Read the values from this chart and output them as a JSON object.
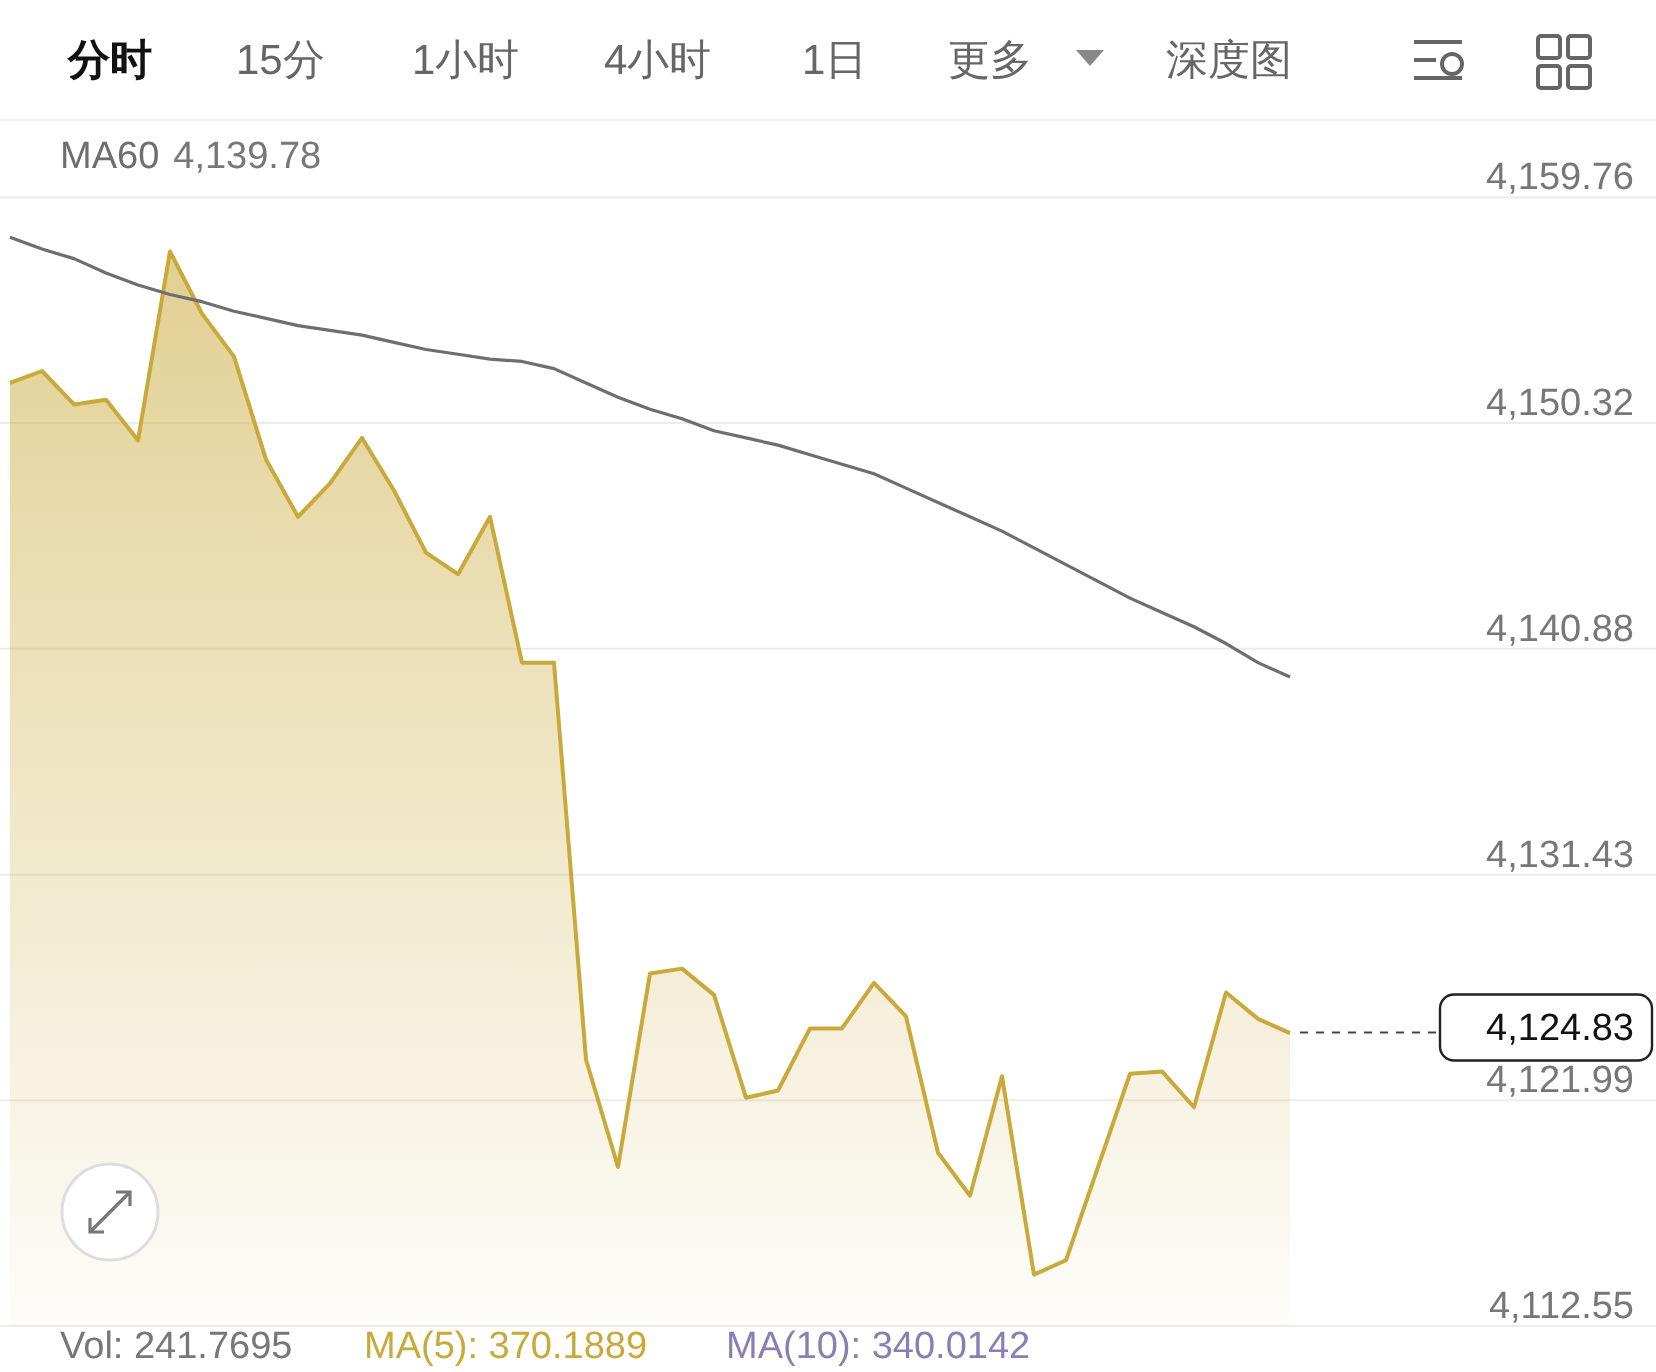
{
  "chart_data": {
    "type": "area",
    "categories": [
      null,
      null,
      null,
      null,
      null,
      null,
      null,
      null,
      null,
      null,
      null,
      null,
      null,
      null,
      null,
      null,
      null,
      null,
      null,
      null,
      null,
      null,
      null,
      null,
      null,
      null,
      null,
      null,
      null,
      null,
      null,
      null,
      null,
      null,
      null,
      null,
      null,
      null,
      null,
      null,
      null
    ],
    "series": [
      {
        "color": "#c9a93a",
        "values": [
          4152.0,
          4152.5,
          4151.1,
          4151.3,
          4149.6,
          4157.5,
          4154.9,
          4153.1,
          4148.8,
          4146.4,
          4147.8,
          4149.7,
          4147.5,
          4144.9,
          4144.0,
          4146.4,
          4140.3,
          4140.3,
          4123.7,
          4119.2,
          4127.3,
          4127.5,
          4126.4,
          4122.1,
          4122.4,
          4125.0,
          4125.0,
          4126.9,
          4125.5,
          4119.8,
          4118.0,
          4123.0,
          4114.7,
          4115.3,
          4119.2,
          4123.1,
          4123.2,
          4121.7,
          4126.5,
          4125.4,
          4124.8
        ]
      },
      {
        "type": "line",
        "name": "MA60",
        "color": "#6e6e6e",
        "values": [
          4158.1,
          4157.6,
          4157.2,
          4156.6,
          4156.1,
          4155.7,
          4155.4,
          4155.0,
          4154.7,
          4154.4,
          4154.2,
          4154.0,
          4153.7,
          4153.4,
          4153.2,
          4153.0,
          4152.9,
          4152.6,
          4152.0,
          4151.4,
          4150.9,
          4150.5,
          4150.0,
          4149.7,
          4149.4,
          4149.0,
          4148.6,
          4148.2,
          4147.6,
          4147.0,
          4146.4,
          4145.8,
          4145.1,
          4144.4,
          4143.7,
          4143.0,
          4142.4,
          4141.8,
          4141.1,
          4140.3,
          4139.7
        ]
      }
    ],
    "ylim": [
      4112.55,
      4163.0
    ],
    "yticks": [
      {
        "value": 4159.76,
        "label": "4,159.76"
      },
      {
        "value": 4150.32,
        "label": "4,150.32"
      },
      {
        "value": 4140.88,
        "label": "4,140.88"
      },
      {
        "value": 4131.43,
        "label": "4,131.43"
      },
      {
        "value": 4121.99,
        "label": "4,121.99"
      },
      {
        "value": 4112.55,
        "label": "4,112.55"
      }
    ],
    "grid": "y",
    "tick_labels": "y",
    "ref_lines": [
      {
        "axis": "y",
        "value": 4124.83,
        "label": "4,124.83",
        "line_style": "dashed"
      }
    ],
    "annotations": [
      "分时",
      "15分",
      "1小时",
      "4小时",
      "1日",
      "更多",
      "深度图",
      "Vol: 241.7695",
      "MA(5): 370.1889",
      "MA(10): 340.0142",
      "4,139.78"
    ]
  }
}
